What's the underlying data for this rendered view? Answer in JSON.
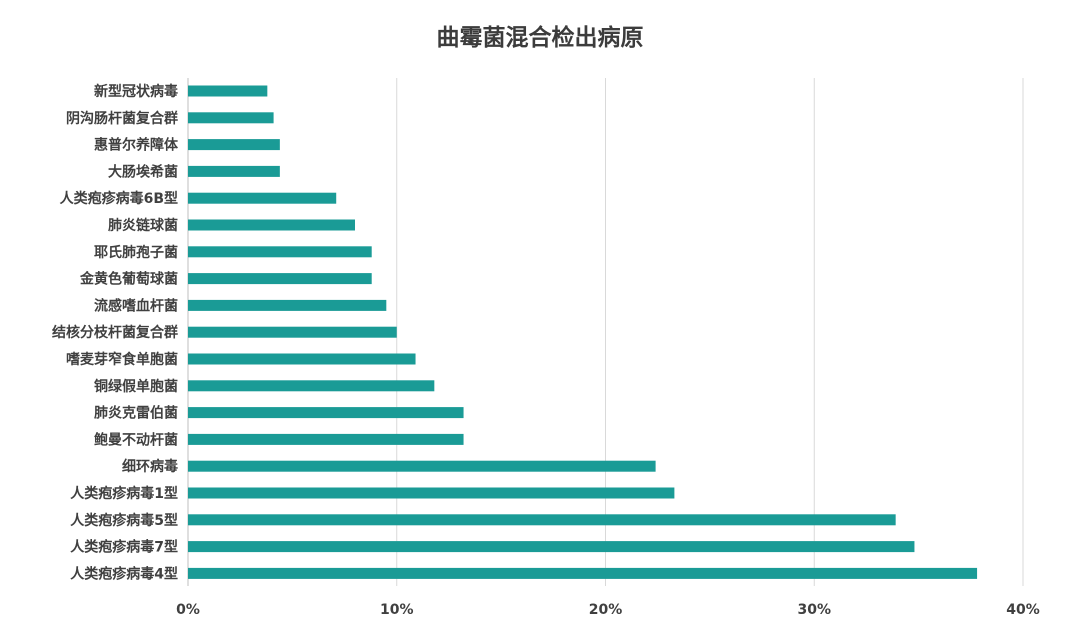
{
  "chart_data": {
    "type": "bar",
    "orientation": "horizontal",
    "title": "曲霉菌混合检出病原",
    "xlabel": "",
    "ylabel": "",
    "xlim": [
      0,
      40
    ],
    "x_ticks": [
      "0%",
      "10%",
      "20%",
      "30%",
      "40%"
    ],
    "grid": "vertical",
    "bar_color": "#1a9b96",
    "categories": [
      "新型冠状病毒",
      "阴沟肠杆菌复合群",
      "惠普尔养障体",
      "大肠埃希菌",
      "人类疱疹病毒6B型",
      "肺炎链球菌",
      "耶氏肺孢子菌",
      "金黄色葡萄球菌",
      "流感嗜血杆菌",
      "结核分枝杆菌复合群",
      "嗜麦芽窄食单胞菌",
      "铜绿假单胞菌",
      "肺炎克雷伯菌",
      "鲍曼不动杆菌",
      "细环病毒",
      "人类疱疹病毒1型",
      "人类疱疹病毒5型",
      "人类疱疹病毒7型",
      "人类疱疹病毒4型"
    ],
    "values": [
      3.8,
      4.1,
      4.4,
      4.4,
      7.1,
      8.0,
      8.8,
      8.8,
      9.5,
      10.0,
      10.9,
      11.8,
      13.2,
      13.2,
      22.4,
      23.3,
      33.9,
      34.8,
      37.8
    ]
  }
}
